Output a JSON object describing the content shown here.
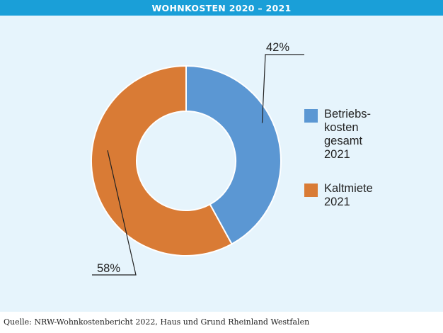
{
  "header": {
    "title": "WOHNKOSTEN 2020 – 2021"
  },
  "chart_data": {
    "type": "pie",
    "title": "WOHNKOSTEN 2020 – 2021",
    "donut": true,
    "categories": [
      "Betriebs-\nkosten\ngesamt\n2021",
      "Kaltmiete\n2021"
    ],
    "values": [
      42,
      58
    ],
    "data_labels": [
      "42%",
      "58%"
    ],
    "colors": [
      "#5b97d3",
      "#d97b35"
    ],
    "legend_position": "right"
  },
  "footer": {
    "source": "Quelle: NRW-Wohnkostenbericht 2022, Haus und Grund Rheinland Westfalen"
  }
}
